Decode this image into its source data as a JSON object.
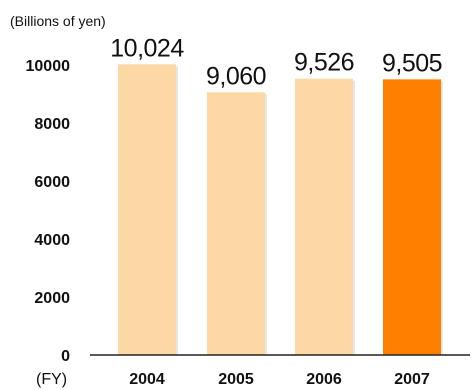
{
  "chart_data": {
    "type": "bar",
    "ylabel": "(Billions of yen)",
    "xlabel": "(FY)",
    "categories": [
      "2004",
      "2005",
      "2006",
      "2007"
    ],
    "values": [
      10024,
      9060,
      9526,
      9505
    ],
    "data_labels": [
      "10,024",
      "9,060",
      "9,526",
      "9,505"
    ],
    "ylim": [
      0,
      10000
    ],
    "yticks": [
      "0",
      "2000",
      "4000",
      "6000",
      "8000",
      "10000"
    ],
    "grid": false,
    "legend": "none",
    "bar_color": "#fcd9a4",
    "highlight_color": "#ff8000",
    "highlight_index": 3
  }
}
